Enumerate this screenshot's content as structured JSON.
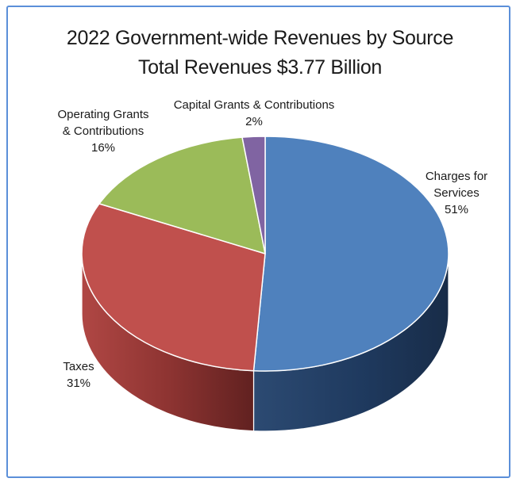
{
  "chart_data": {
    "type": "pie",
    "title": "2022 Government-wide Revenues by Source",
    "subtitle": "Total Revenues $3.77 Billion",
    "slices": [
      {
        "label_lines": [
          "Charges for",
          "Services"
        ],
        "pct_label": "51%",
        "value": 51,
        "color": "#4f81bd",
        "side_dark": "#1c3353",
        "side_light": "#3a5e8c"
      },
      {
        "label_lines": [
          "Taxes"
        ],
        "pct_label": "31%",
        "value": 31,
        "color": "#c0504d",
        "side_dark": "#6b1f1d",
        "side_light": "#a8403d"
      },
      {
        "label_lines": [
          "Operating Grants",
          "& Contributions"
        ],
        "pct_label": "16%",
        "value": 16,
        "color": "#9bbb59",
        "side_dark": "#4f6128",
        "side_light": "#7a9544"
      },
      {
        "label_lines": [
          "Capital Grants & Contributions"
        ],
        "pct_label": "2%",
        "value": 2,
        "color": "#8064a2",
        "side_dark": "#3f3052",
        "side_light": "#66508a"
      }
    ],
    "legend": "none"
  }
}
